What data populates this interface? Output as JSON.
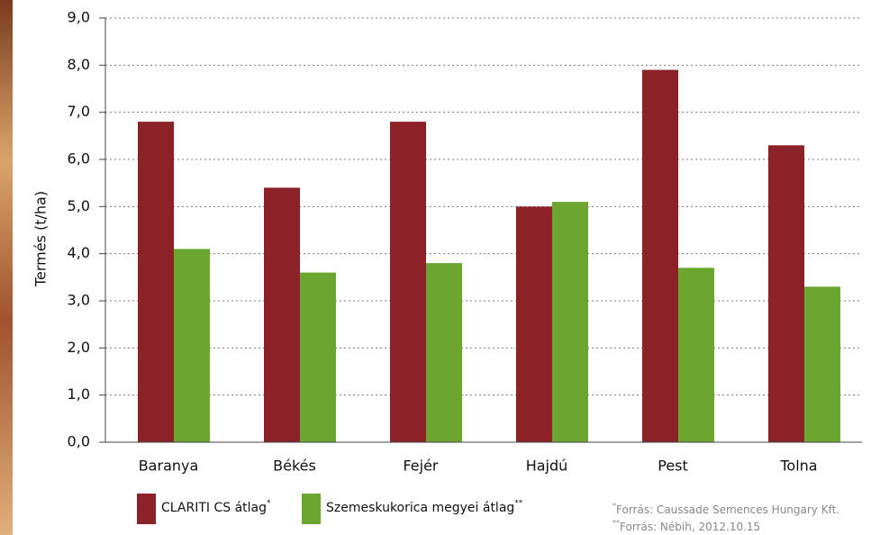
{
  "chart_data": {
    "type": "bar",
    "y_label": "Termés (t/ha)",
    "categories": [
      "Baranya",
      "Békés",
      "Fejér",
      "Hajdú",
      "Pest",
      "Tolna"
    ],
    "series": [
      {
        "name": "CLARITI CS átlag",
        "note_mark": "*",
        "color": "#8b2228",
        "values": [
          6.8,
          5.4,
          6.8,
          5.0,
          7.9,
          6.3
        ]
      },
      {
        "name": "Szemeskukorica megyei átlag",
        "note_mark": "**",
        "color": "#6ca530",
        "values": [
          4.1,
          3.6,
          3.8,
          5.1,
          3.7,
          3.3
        ]
      }
    ],
    "ylim": [
      0,
      9
    ],
    "yticks": [
      {
        "value": 0,
        "label": "0,0"
      },
      {
        "value": 1,
        "label": "1,0"
      },
      {
        "value": 2,
        "label": "2,0"
      },
      {
        "value": 3,
        "label": "3,0"
      },
      {
        "value": 4,
        "label": "4,0"
      },
      {
        "value": 5,
        "label": "5,0"
      },
      {
        "value": 6,
        "label": "6,0"
      },
      {
        "value": 7,
        "label": "7,0"
      },
      {
        "value": 8,
        "label": "8,0"
      },
      {
        "value": 9,
        "label": "9,0"
      }
    ],
    "grid": true,
    "footnotes": [
      {
        "mark": "*",
        "text": "Forrás:  Caussade Semences Hungary Kft."
      },
      {
        "mark": "**",
        "text": "Forrás:  Nébih, 2012.10.15"
      }
    ]
  }
}
